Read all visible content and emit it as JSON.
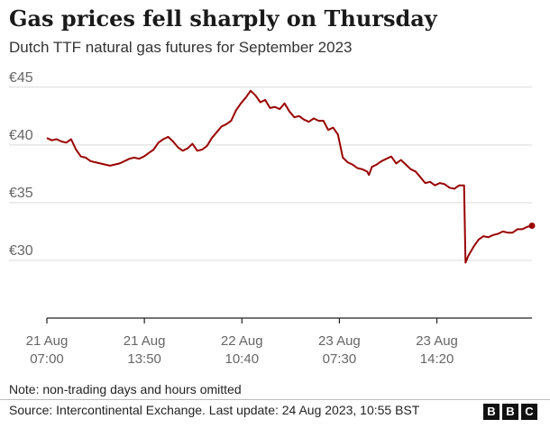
{
  "header": {
    "title": "Gas prices fell sharply on Thursday",
    "subtitle": "Dutch TTF natural gas futures for September 2023"
  },
  "footer": {
    "note": "Note: non-trading days and hours omitted",
    "source": "Source: Intercontinental Exchange. Last update: 24 Aug 2023, 10:55 BST",
    "logo_letters": [
      "B",
      "B",
      "C"
    ]
  },
  "colors": {
    "line": "#990000",
    "grid": "#d9d9d9",
    "axis": "#222222"
  },
  "chart_data": {
    "type": "line",
    "title": "Gas prices fell sharply on Thursday",
    "subtitle": "Dutch TTF natural gas futures for September 2023",
    "xlabel": "",
    "ylabel": "",
    "ylim": [
      25,
      46
    ],
    "yticks": [
      30,
      35,
      40,
      45
    ],
    "ytick_labels": [
      "€30",
      "€35",
      "€40",
      "€45"
    ],
    "xlim": [
      0,
      100
    ],
    "x_ticks": [
      {
        "x": 0,
        "line1": "21 Aug",
        "line2": "07:00"
      },
      {
        "x": 20.1,
        "line1": "21 Aug",
        "line2": "13:50"
      },
      {
        "x": 40.2,
        "line1": "22 Aug",
        "line2": "10:40"
      },
      {
        "x": 60.3,
        "line1": "23 Aug",
        "line2": "07:30"
      },
      {
        "x": 80.4,
        "line1": "23 Aug",
        "line2": "14:20"
      }
    ],
    "grid": true,
    "series": [
      {
        "color": "#990000",
        "x": [
          0,
          1,
          2,
          3,
          4,
          5,
          6,
          7,
          8,
          9,
          10,
          11,
          12,
          13,
          14,
          15,
          16,
          17,
          18,
          19,
          20,
          21,
          22,
          23,
          24,
          25,
          26,
          27,
          28,
          29,
          30,
          31,
          32,
          33,
          34,
          35,
          36,
          37,
          38,
          39,
          40,
          41,
          42,
          43,
          44,
          45,
          46,
          47,
          48,
          49,
          50,
          51,
          52,
          53,
          54,
          55,
          56,
          57,
          58,
          59,
          60,
          61,
          62,
          63,
          64,
          65,
          66,
          66.4,
          67,
          68,
          69,
          70,
          71,
          72,
          73,
          74,
          75,
          76,
          77,
          78,
          79,
          80,
          81,
          82,
          83,
          84,
          85,
          86,
          86.3,
          86.9,
          88,
          89,
          90,
          91,
          92,
          93,
          94,
          95,
          96,
          97,
          98,
          99,
          100
        ],
        "y": [
          40.6,
          40.4,
          40.5,
          40.3,
          40.2,
          40.5,
          39.6,
          39.0,
          38.9,
          38.6,
          38.5,
          38.4,
          38.3,
          38.2,
          38.3,
          38.4,
          38.6,
          38.8,
          38.9,
          38.8,
          39.0,
          39.3,
          39.6,
          40.2,
          40.5,
          40.7,
          40.3,
          39.8,
          39.5,
          39.7,
          40.1,
          39.5,
          39.6,
          39.9,
          40.6,
          41.1,
          41.6,
          41.8,
          42.1,
          43.0,
          43.6,
          44.1,
          44.7,
          44.3,
          43.7,
          43.9,
          43.2,
          43.3,
          43.1,
          43.6,
          42.9,
          42.4,
          42.5,
          42.2,
          42.0,
          42.3,
          42.1,
          42.1,
          41.3,
          41.5,
          40.9,
          38.9,
          38.5,
          38.3,
          38.0,
          37.9,
          37.7,
          37.4,
          38.1,
          38.3,
          38.6,
          38.8,
          39.0,
          38.4,
          38.7,
          38.3,
          37.9,
          37.7,
          37.2,
          36.7,
          36.8,
          36.5,
          36.7,
          36.6,
          36.3,
          36.2,
          36.5,
          36.5,
          29.8,
          30.4,
          31.2,
          31.8,
          32.1,
          32.0,
          32.2,
          32.3,
          32.5,
          32.4,
          32.4,
          32.7,
          32.7,
          32.9,
          33.0
        ]
      }
    ],
    "legend": "none"
  }
}
